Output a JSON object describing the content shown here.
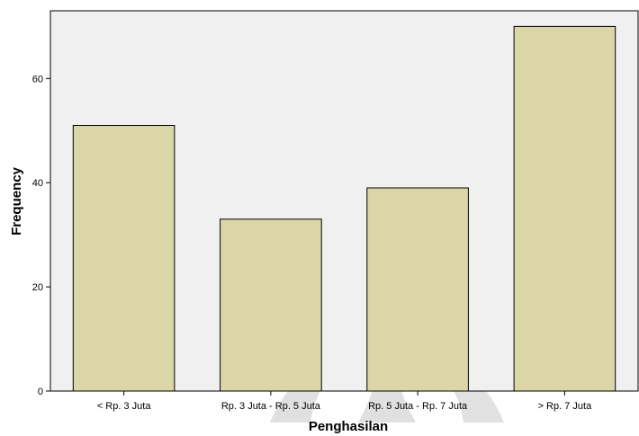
{
  "chart_data": {
    "type": "bar",
    "categories": [
      "< Rp. 3 Juta",
      "Rp. 3 Juta - Rp. 5 Juta",
      "Rp. 5 Juta - Rp. 7 Juta",
      "> Rp. 7 Juta"
    ],
    "values": [
      51,
      33,
      39,
      70
    ],
    "xlabel": "Penghasilan",
    "ylabel": "Frequency",
    "ylim": [
      0,
      73
    ],
    "yticks": [
      0,
      20,
      40,
      60
    ],
    "grid": false,
    "legend": "none",
    "colors": {
      "plot_background": "#f0f0f0",
      "bar_fill": "#dbd6a8",
      "bar_stroke": "#000000",
      "watermark": "#c8c8c8"
    }
  }
}
